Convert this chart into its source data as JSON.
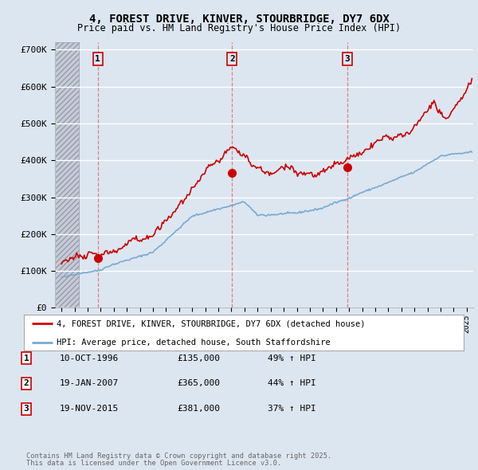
{
  "title1": "4, FOREST DRIVE, KINVER, STOURBRIDGE, DY7 6DX",
  "title2": "Price paid vs. HM Land Registry's House Price Index (HPI)",
  "ytick_labels": [
    "£0",
    "£100K",
    "£200K",
    "£300K",
    "£400K",
    "£500K",
    "£600K",
    "£700K"
  ],
  "ytick_values": [
    0,
    100000,
    200000,
    300000,
    400000,
    500000,
    600000,
    700000
  ],
  "ylim": [
    0,
    720000
  ],
  "xlim_start": 1993.5,
  "xlim_end": 2025.5,
  "background_color": "#dce6f1",
  "grid_color": "#ffffff",
  "purchases": [
    {
      "label": "1",
      "date": "10-OCT-1996",
      "year": 1996.78,
      "price": 135000,
      "pct": "49%",
      "dir": "↑"
    },
    {
      "label": "2",
      "date": "19-JAN-2007",
      "year": 2007.05,
      "price": 365000,
      "pct": "44%",
      "dir": "↑"
    },
    {
      "label": "3",
      "date": "19-NOV-2015",
      "year": 2015.88,
      "price": 381000,
      "pct": "37%",
      "dir": "↑"
    }
  ],
  "legend_red": "4, FOREST DRIVE, KINVER, STOURBRIDGE, DY7 6DX (detached house)",
  "legend_blue": "HPI: Average price, detached house, South Staffordshire",
  "footer1": "Contains HM Land Registry data © Crown copyright and database right 2025.",
  "footer2": "This data is licensed under the Open Government Licence v3.0.",
  "red_color": "#cc0000",
  "blue_color": "#7aaad0",
  "vline_color": "#e08080",
  "hatch_end_year": 1995.3
}
